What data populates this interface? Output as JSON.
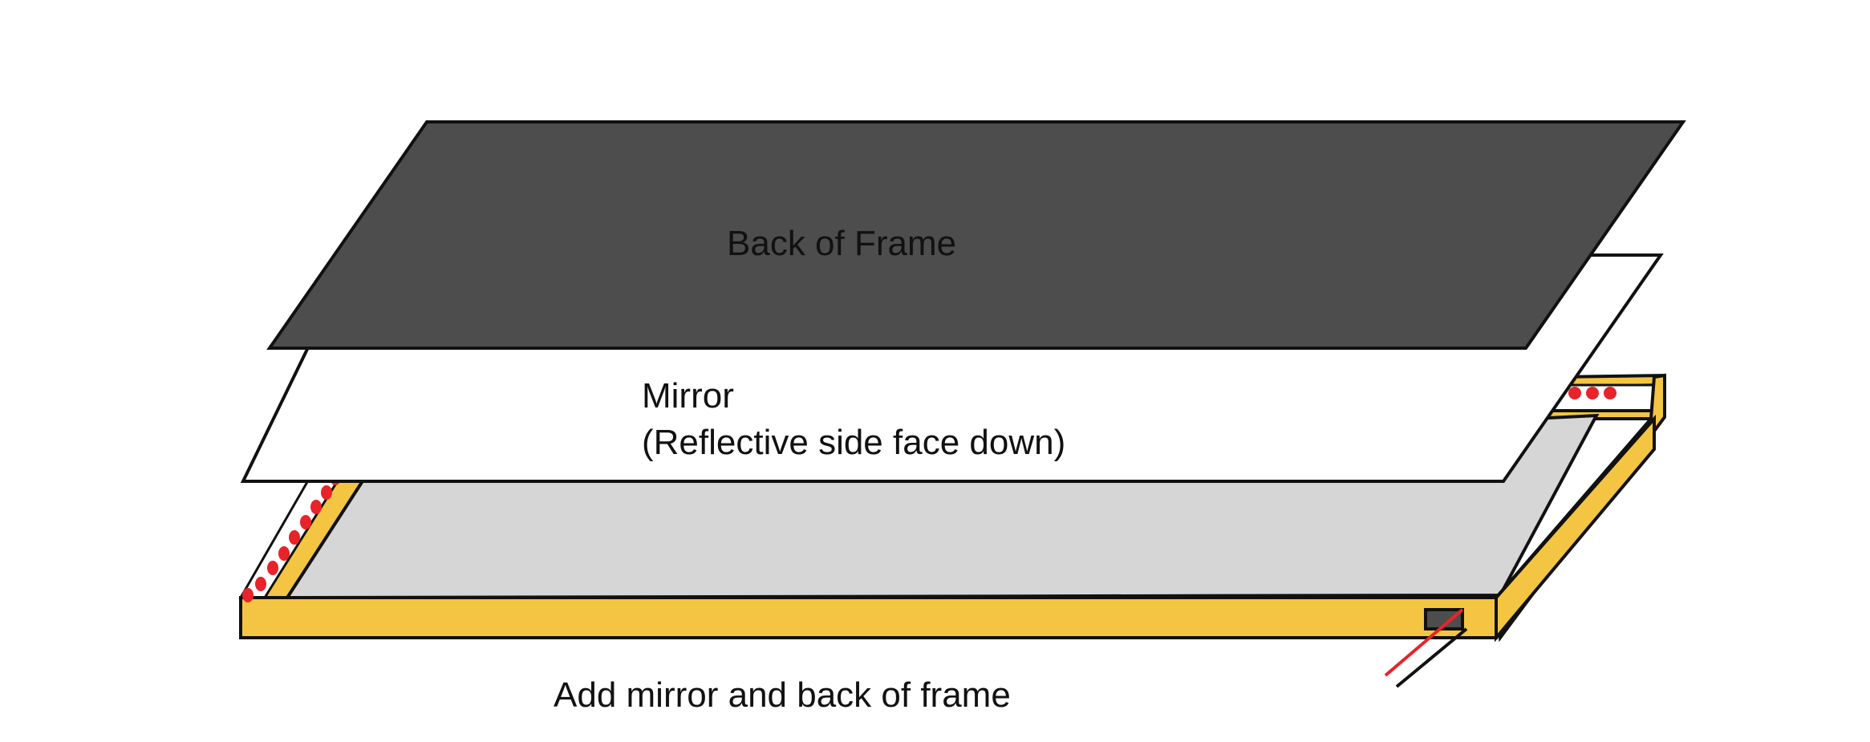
{
  "labels": {
    "back_of_frame": "Back of Frame",
    "mirror_line1": "Mirror",
    "mirror_line2": "(Reflective side face down)",
    "caption": "Add mirror and back of frame"
  },
  "colors": {
    "frame_wood": "#f4c542",
    "frame_inner": "#d6d6d6",
    "back_panel": "#4d4d4d",
    "mirror": "#ffffff",
    "led": "#e8232a",
    "connector": "#4d4d4d",
    "wire_red": "#e8232a",
    "wire_black": "#111111",
    "outline": "#111111"
  }
}
